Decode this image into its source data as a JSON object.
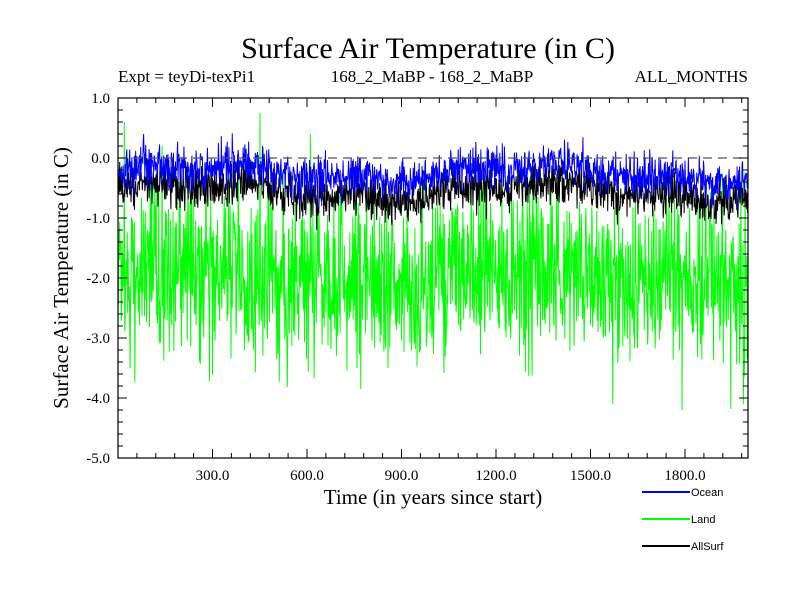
{
  "chart_data": {
    "type": "line",
    "title": "Surface Air Temperature (in C)",
    "subtitle_left": "Expt = teyDi-texPi1",
    "subtitle_center": "168_2_MaBP - 168_2_MaBP",
    "subtitle_right": "ALL_MONTHS",
    "xlabel": "Time (in years since start)",
    "ylabel": "Surface Air Temperature (in C)",
    "xlim": [
      0,
      2000
    ],
    "ylim": [
      -5.0,
      1.0
    ],
    "x_ticks": [
      300,
      600,
      900,
      1200,
      1500,
      1800
    ],
    "x_tick_labels": [
      "300.0",
      "600.0",
      "900.0",
      "1200.0",
      "1500.0",
      "1800.0"
    ],
    "y_ticks": [
      1.0,
      0.0,
      -1.0,
      -2.0,
      -3.0,
      -4.0,
      -5.0
    ],
    "y_tick_labels": [
      "1.0",
      "0.0",
      "-1.0",
      "-2.0",
      "-3.0",
      "-4.0",
      "-5.0"
    ],
    "reference_line": 0.0,
    "series": [
      {
        "name": "Land",
        "color": "#00ff00",
        "mean": -1.95,
        "min": -4.2,
        "max": 0.75,
        "spread": 0.8,
        "spikes": [
          [
            20,
            0.6
          ],
          [
            140,
            0.2
          ],
          [
            450,
            0.75
          ],
          [
            610,
            0.4
          ],
          [
            1570,
            -4.1
          ],
          [
            1790,
            -4.2
          ],
          [
            1985,
            -4.1
          ],
          [
            770,
            -3.85
          ]
        ]
      },
      {
        "name": "AllSurf",
        "color": "#000000",
        "mean": -0.55,
        "min": -1.3,
        "max": 0.1,
        "spread": 0.22
      },
      {
        "name": "Ocean",
        "color": "#0000ff",
        "mean": -0.25,
        "min": -0.95,
        "max": 0.42,
        "spread": 0.2
      }
    ],
    "legend": [
      {
        "name": "Ocean",
        "color": "#0000ff"
      },
      {
        "name": "Land",
        "color": "#00ff00"
      },
      {
        "name": "AllSurf",
        "color": "#000000"
      }
    ]
  }
}
